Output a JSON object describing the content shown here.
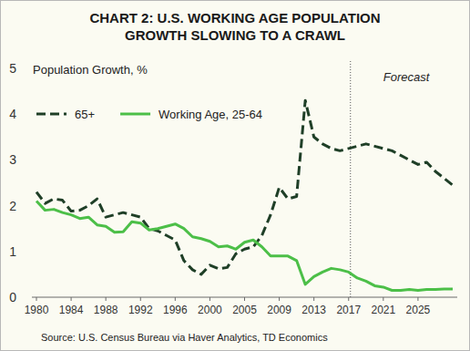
{
  "chart_data": {
    "type": "line",
    "title": "CHART 2: U.S. WORKING AGE POPULATION\nGROWTH SLOWING TO A CRAWL",
    "y_label": "Population Growth, %",
    "source": "Source: U.S. Census Bureau via Haver Analytics, TD Economics",
    "forecast": {
      "label": "Forecast",
      "x": "2017"
    },
    "categories": [
      "1980",
      null,
      null,
      null,
      "1984",
      null,
      null,
      null,
      "1988",
      null,
      null,
      null,
      "1992",
      null,
      null,
      null,
      "1996",
      null,
      null,
      null,
      "2000",
      null,
      null,
      null,
      "2005",
      null,
      null,
      null,
      "2009",
      null,
      null,
      null,
      "2013",
      null,
      null,
      null,
      "2017",
      null,
      null,
      null,
      "2021",
      null,
      null,
      null,
      "2025",
      null,
      null,
      null,
      null
    ],
    "series": [
      {
        "name": "65+",
        "color": "#1f3f27",
        "line_style": "dashed",
        "values": [
          2.3,
          2.05,
          2.15,
          2.12,
          1.88,
          1.9,
          2.0,
          2.15,
          1.75,
          1.8,
          1.85,
          1.8,
          1.75,
          1.5,
          1.45,
          1.35,
          1.25,
          0.8,
          0.6,
          0.5,
          0.7,
          0.62,
          0.65,
          0.95,
          1.05,
          1.1,
          1.35,
          1.8,
          2.4,
          2.15,
          2.2,
          4.3,
          3.5,
          3.35,
          3.25,
          3.2,
          3.25,
          3.3,
          3.35,
          3.3,
          3.25,
          3.2,
          3.1,
          3.0,
          2.9,
          2.95,
          2.75,
          2.6,
          2.45
        ]
      },
      {
        "name": "Working Age, 25-64",
        "color": "#4cbf48",
        "line_style": "solid",
        "values": [
          2.1,
          1.9,
          1.92,
          1.85,
          1.8,
          1.72,
          1.75,
          1.58,
          1.55,
          1.42,
          1.43,
          1.65,
          1.62,
          1.47,
          1.5,
          1.55,
          1.6,
          1.5,
          1.32,
          1.28,
          1.22,
          1.1,
          1.12,
          1.05,
          1.2,
          1.25,
          1.1,
          0.9,
          0.9,
          0.9,
          0.8,
          0.28,
          0.45,
          0.55,
          0.63,
          0.6,
          0.55,
          0.42,
          0.35,
          0.25,
          0.22,
          0.15,
          0.15,
          0.17,
          0.15,
          0.17,
          0.17,
          0.18,
          0.18
        ]
      }
    ],
    "ylim": [
      0,
      5
    ],
    "yticks": [
      0,
      1,
      2,
      3,
      4,
      5
    ],
    "grid": false,
    "legend": "top-left"
  }
}
